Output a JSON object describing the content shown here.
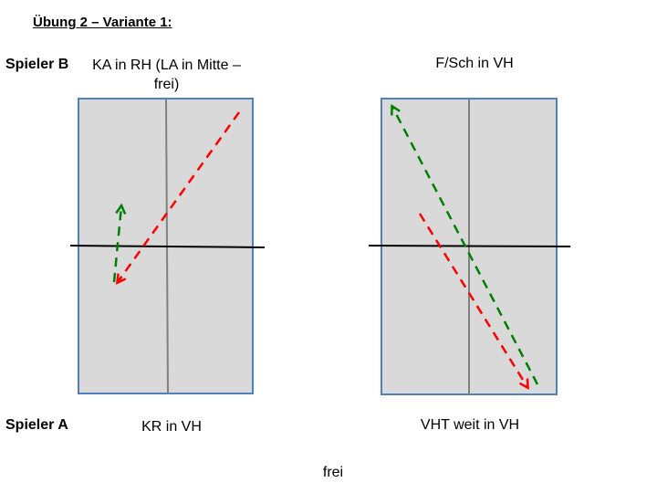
{
  "title": "Übung 2 – Variante 1:",
  "player_b": "Spieler B",
  "player_a": "Spieler A",
  "left_table": {
    "top_label_line1": "KA in RH (LA in Mitte –",
    "top_label_line2": "frei)",
    "bottom_label": "KR in VH"
  },
  "right_table": {
    "top_label": "F/Sch in VH",
    "bottom_label": "VHT weit in VH"
  },
  "footer": "frei",
  "colors": {
    "table_fill": "#d9d9d9",
    "table_border": "#4f81bd",
    "center_line": "#808080",
    "net": "#000000",
    "arrow_red": "#ff0000",
    "arrow_green": "#008000"
  }
}
